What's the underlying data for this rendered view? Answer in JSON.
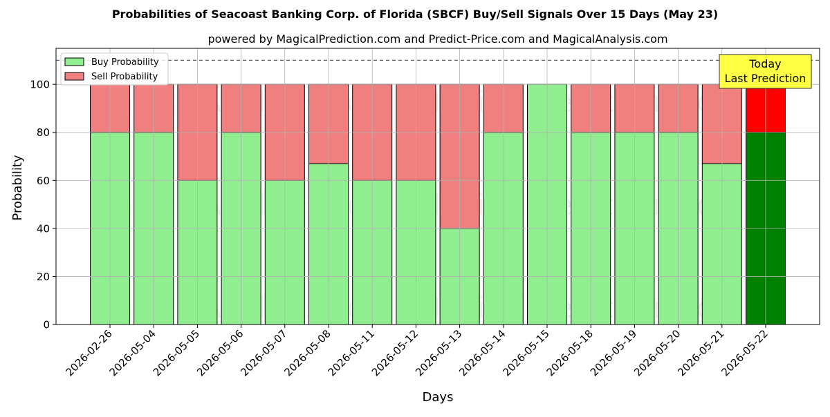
{
  "chart_data": {
    "type": "bar",
    "stacked": true,
    "title": "Probabilities of Seacoast Banking Corp. of Florida (SBCF) Buy/Sell Signals Over 15 Days (May 23)",
    "subtitle": "powered by MagicalPrediction.com and Predict-Price.com and MagicalAnalysis.com",
    "xlabel": "Days",
    "ylabel": "Probability",
    "ylim": [
      0,
      115
    ],
    "yticks": [
      0,
      20,
      40,
      60,
      80,
      100
    ],
    "reference_line": 110,
    "grid": true,
    "legend_position": "top-left",
    "categories": [
      "2026-02-26",
      "2026-05-04",
      "2026-05-05",
      "2026-05-06",
      "2026-05-07",
      "2026-05-08",
      "2026-05-11",
      "2026-05-12",
      "2026-05-13",
      "2026-05-14",
      "2026-05-15",
      "2026-05-18",
      "2026-05-19",
      "2026-05-20",
      "2026-05-21",
      "2026-05-22"
    ],
    "series": [
      {
        "name": "Buy Probability",
        "color": "#90ee90",
        "values": [
          80,
          80,
          60,
          80,
          60,
          67,
          60,
          60,
          40,
          80,
          100,
          80,
          80,
          80,
          67,
          80
        ]
      },
      {
        "name": "Sell Probability",
        "color": "#f08080",
        "values": [
          20,
          20,
          40,
          20,
          40,
          33,
          40,
          40,
          60,
          20,
          0,
          20,
          20,
          20,
          33,
          20
        ]
      }
    ],
    "highlight": {
      "index": 15,
      "buy_color": "#008000",
      "sell_color": "#ff0000"
    },
    "annotation": {
      "lines": [
        "Today",
        "Last Prediction"
      ],
      "background": "#ffff44"
    },
    "watermarks": [
      "MagicalAnalysis.com",
      "MagicalPrediction.com"
    ]
  }
}
